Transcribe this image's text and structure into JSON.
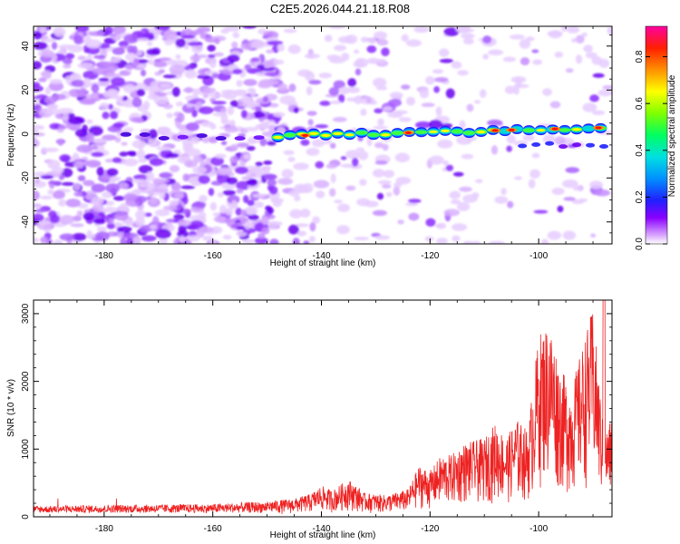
{
  "title": "C2E5.2026.044.21.18.R08",
  "chart_data": [
    {
      "type": "heatmap",
      "xlabel": "Height of straight line (km)",
      "ylabel": "Frequency (Hz)",
      "xlim": [
        -193,
        -86.5
      ],
      "ylim": [
        -50,
        49
      ],
      "xticks": [
        -180,
        -160,
        -140,
        -120,
        -100
      ],
      "yticks": [
        -40,
        -20,
        0,
        20,
        40
      ],
      "xtick_labels": [
        "-180",
        "-160",
        "-140",
        "-120",
        "-100"
      ],
      "ytick_labels": [
        "-40",
        "-20",
        "0",
        "20",
        "40"
      ],
      "colorbar": {
        "label": "Normalized spectral amplitude",
        "range": [
          0,
          0.93
        ],
        "ticks": [
          "0.0",
          "0.2",
          "0.4",
          "0.6",
          "0.8"
        ],
        "tick_values": [
          0.0,
          0.2,
          0.4,
          0.6,
          0.8
        ],
        "colormap": "rainbow (violet to red)"
      },
      "features": {
        "noise_region_km": [
          -193,
          -148
        ],
        "sparse_region_km": [
          -148,
          -128
        ],
        "signal_start_km": -148,
        "signal_frequency_hz_start": -1,
        "signal_frequency_hz_end": 3,
        "signal_peak_km": [
          -143,
          -124,
          -108,
          -105,
          -97,
          -89
        ]
      }
    },
    {
      "type": "line",
      "xlabel": "Height of straight line (km)",
      "ylabel": "SNR (10 * v/v)",
      "xlim": [
        -193,
        -86.5
      ],
      "ylim": [
        0,
        3200
      ],
      "xticks": [
        -180,
        -160,
        -140,
        -120,
        -100
      ],
      "yticks": [
        0,
        1000,
        2000,
        3000
      ],
      "xtick_labels": [
        "-180",
        "-160",
        "-140",
        "-120",
        "-100"
      ],
      "ytick_labels": [
        "0",
        "1000",
        "2000",
        "3000"
      ],
      "color": "#ee2222",
      "envelope": {
        "x": [
          -193,
          -175,
          -160,
          -150,
          -145,
          -142,
          -140,
          -138,
          -135,
          -132,
          -128,
          -124,
          -122,
          -120,
          -118,
          -116,
          -114,
          -112,
          -110,
          -108,
          -106,
          -104,
          -102,
          -100,
          -98,
          -96,
          -94,
          -92,
          -90,
          -88,
          -86.5
        ],
        "y": [
          160,
          180,
          190,
          230,
          270,
          340,
          460,
          390,
          560,
          350,
          320,
          410,
          760,
          680,
          900,
          920,
          1080,
          1120,
          1160,
          1380,
          1170,
          1440,
          1280,
          2700,
          2900,
          2200,
          1900,
          2500,
          3100,
          1200,
          1500
        ]
      },
      "peak": {
        "x": -88,
        "y": 3200
      }
    }
  ]
}
